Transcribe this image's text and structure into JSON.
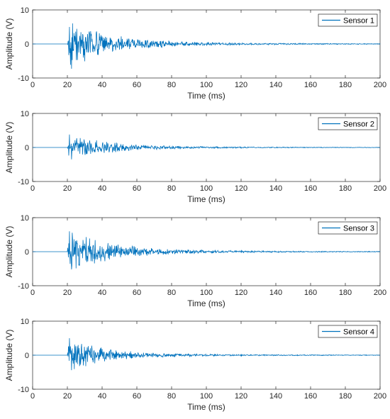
{
  "colors": {
    "series": "#0072BD",
    "axis": "#262626",
    "legend_border": "#000000"
  },
  "chart_data": [
    {
      "type": "line",
      "legend": "Sensor 1",
      "legend_position": "top-right",
      "xlabel": "Time (ms)",
      "ylabel": "Amplitude (V)",
      "xlim": [
        0,
        200
      ],
      "ylim": [
        -10,
        10
      ],
      "xticks": [
        "0",
        "20",
        "40",
        "60",
        "80",
        "100",
        "120",
        "140",
        "160",
        "180",
        "200"
      ],
      "yticks": [
        "10",
        "0",
        "-10"
      ],
      "grid": false,
      "signal": {
        "onset_ms": 20,
        "peak_pos_v": 5.0,
        "peak_neg_v": -7.3,
        "decay_ms": 22
      }
    },
    {
      "type": "line",
      "legend": "Sensor 2",
      "legend_position": "top-right",
      "xlabel": "Time (ms)",
      "ylabel": "Amplitude (V)",
      "xlim": [
        0,
        200
      ],
      "ylim": [
        -10,
        10
      ],
      "xticks": [
        "0",
        "20",
        "40",
        "60",
        "80",
        "100",
        "120",
        "140",
        "160",
        "180",
        "200"
      ],
      "yticks": [
        "10",
        "0",
        "-10"
      ],
      "grid": false,
      "signal": {
        "onset_ms": 20,
        "peak_pos_v": 3.8,
        "peak_neg_v": -3.5,
        "decay_ms": 20
      }
    },
    {
      "type": "line",
      "legend": "Sensor 3",
      "legend_position": "top-right",
      "xlabel": "Time (ms)",
      "ylabel": "Amplitude (V)",
      "xlim": [
        0,
        200
      ],
      "ylim": [
        -10,
        10
      ],
      "xticks": [
        "0",
        "20",
        "40",
        "60",
        "80",
        "100",
        "120",
        "140",
        "160",
        "180",
        "200"
      ],
      "yticks": [
        "10",
        "0",
        "-10"
      ],
      "grid": false,
      "signal": {
        "onset_ms": 20,
        "peak_pos_v": 6.0,
        "peak_neg_v": -5.2,
        "decay_ms": 22
      }
    },
    {
      "type": "line",
      "legend": "Sensor 4",
      "legend_position": "top-right",
      "xlabel": "Time (ms)",
      "ylabel": "Amplitude (V)",
      "xlim": [
        0,
        200
      ],
      "ylim": [
        -10,
        10
      ],
      "xticks": [
        "0",
        "20",
        "40",
        "60",
        "80",
        "100",
        "120",
        "140",
        "160",
        "180",
        "200"
      ],
      "yticks": [
        "10",
        "0",
        "-10"
      ],
      "grid": false,
      "signal": {
        "onset_ms": 20,
        "peak_pos_v": 5.0,
        "peak_neg_v": -4.4,
        "decay_ms": 18
      }
    }
  ]
}
